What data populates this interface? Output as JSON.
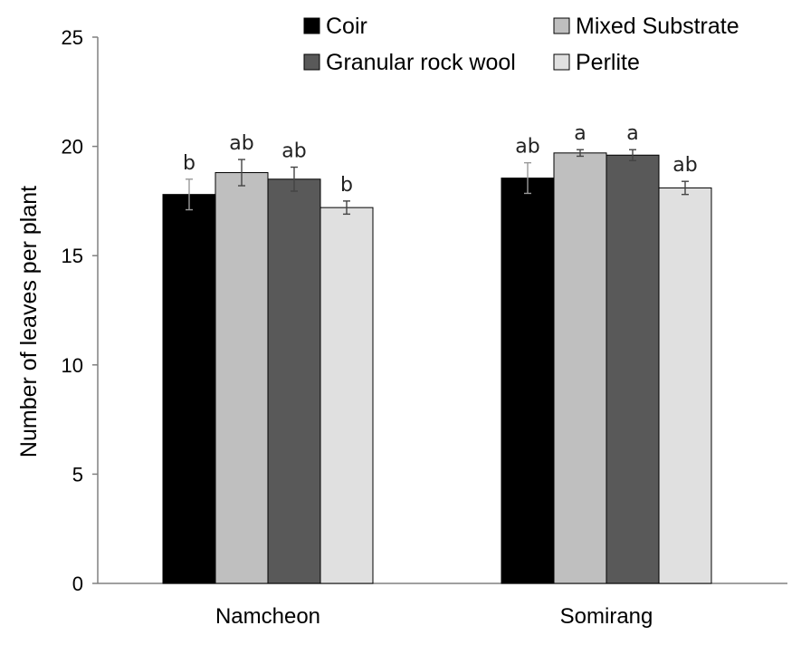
{
  "chart_data": {
    "type": "bar",
    "title": "",
    "xlabel": "",
    "ylabel": "Number of leaves per plant",
    "ylim": [
      0,
      25
    ],
    "yticks": [
      0,
      5,
      10,
      15,
      20,
      25
    ],
    "grid": false,
    "legend_position": "top",
    "categories": [
      "Namcheon",
      "Somirang"
    ],
    "series": [
      {
        "name": "Coir",
        "color": "#000000",
        "values": [
          17.8,
          18.55
        ],
        "errors": [
          0.7,
          0.7
        ],
        "letters": [
          "b",
          "ab"
        ]
      },
      {
        "name": "Mixed Substrate",
        "color": "#bfbfbf",
        "values": [
          18.8,
          19.7
        ],
        "errors": [
          0.6,
          0.15
        ],
        "letters": [
          "ab",
          "a"
        ]
      },
      {
        "name": "Granular rock wool",
        "color": "#595959",
        "values": [
          18.5,
          19.6
        ],
        "errors": [
          0.55,
          0.25
        ],
        "letters": [
          "ab",
          "a"
        ]
      },
      {
        "name": "Perlite",
        "color": "#e0e0e0",
        "values": [
          17.2,
          18.1
        ],
        "errors": [
          0.3,
          0.3
        ],
        "letters": [
          "b",
          "ab"
        ]
      }
    ]
  }
}
